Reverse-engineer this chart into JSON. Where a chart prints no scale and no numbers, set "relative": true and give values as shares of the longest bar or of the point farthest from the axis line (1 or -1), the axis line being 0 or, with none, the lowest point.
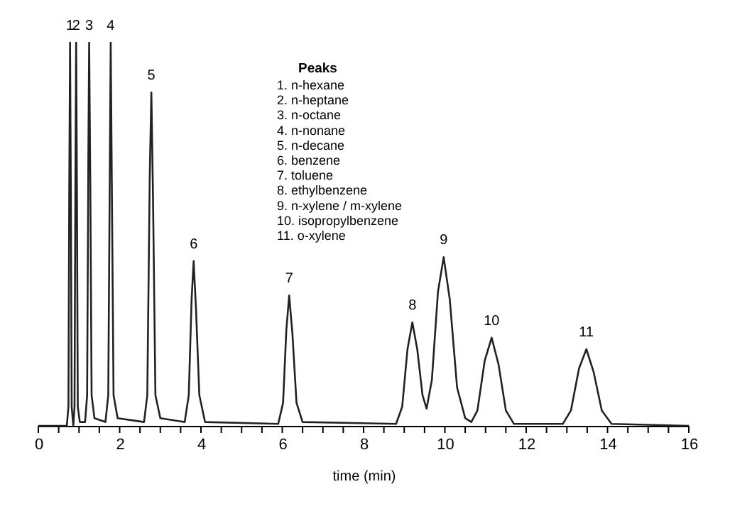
{
  "chart_data": {
    "type": "line",
    "relative": true,
    "xlabel": "time (min)",
    "legend_title": "Peaks",
    "xlim": [
      0,
      16
    ],
    "xticks": [
      0,
      {
        "value": 0.5,
        "label": null
      },
      {
        "value": 1,
        "label": null
      },
      {
        "value": 1.5,
        "label": null
      },
      2,
      {
        "value": 2.5,
        "label": null
      },
      {
        "value": 3,
        "label": null
      },
      {
        "value": 3.5,
        "label": null
      },
      4,
      {
        "value": 4.5,
        "label": null
      },
      {
        "value": 5,
        "label": null
      },
      {
        "value": 5.5,
        "label": null
      },
      6,
      {
        "value": 6.5,
        "label": null
      },
      {
        "value": 7,
        "label": null
      },
      {
        "value": 7.5,
        "label": null
      },
      8,
      {
        "value": 8.5,
        "label": null
      },
      {
        "value": 9,
        "label": null
      },
      {
        "value": 9.5,
        "label": null
      },
      10,
      {
        "value": 10.5,
        "label": null
      },
      {
        "value": 11,
        "label": null
      },
      {
        "value": 11.5,
        "label": null
      },
      12,
      {
        "value": 12.5,
        "label": null
      },
      {
        "value": 13,
        "label": null
      },
      {
        "value": 13.5,
        "label": null
      },
      14,
      {
        "value": 14.5,
        "label": null
      },
      {
        "value": 15,
        "label": null
      },
      {
        "value": 15.5,
        "label": null
      },
      16
    ],
    "marker": "none",
    "line_style": "solid",
    "series": [
      {
        "color": "#222222",
        "x": [
          0,
          0.7,
          0.74,
          0.76,
          0.78,
          0.8,
          0.82,
          0.86,
          0.89,
          0.91,
          0.93,
          0.95,
          0.97,
          1.02,
          1.15,
          1.2,
          1.23,
          1.25,
          1.28,
          1.31,
          1.38,
          1.65,
          1.72,
          1.76,
          1.78,
          1.81,
          1.85,
          1.95,
          2.6,
          2.68,
          2.74,
          2.78,
          2.82,
          2.88,
          3.0,
          3.6,
          3.7,
          3.77,
          3.82,
          3.88,
          3.96,
          4.1,
          5.9,
          6.02,
          6.1,
          6.17,
          6.25,
          6.35,
          6.5,
          8.8,
          8.95,
          9.08,
          9.2,
          9.32,
          9.45,
          9.55,
          9.68,
          9.83,
          9.97,
          10.12,
          10.3,
          10.5,
          10.65,
          10.8,
          10.98,
          11.15,
          11.32,
          11.5,
          11.7,
          12.9,
          13.1,
          13.3,
          13.48,
          13.66,
          13.86,
          14.1,
          16
        ],
        "values": [
          0,
          0,
          0.05,
          0.6,
          1,
          0.6,
          0.05,
          0,
          0.05,
          0.6,
          1,
          0.6,
          0.05,
          0.01,
          0.01,
          0.08,
          0.7,
          1,
          0.6,
          0.08,
          0.02,
          0.01,
          0.08,
          0.7,
          1,
          0.6,
          0.08,
          0.02,
          0.01,
          0.08,
          0.65,
          0.87,
          0.6,
          0.08,
          0.02,
          0.01,
          0.08,
          0.33,
          0.43,
          0.3,
          0.08,
          0.01,
          0.005,
          0.06,
          0.25,
          0.34,
          0.24,
          0.06,
          0.01,
          0.005,
          0.05,
          0.2,
          0.27,
          0.2,
          0.08,
          0.045,
          0.12,
          0.35,
          0.44,
          0.33,
          0.1,
          0.02,
          0.01,
          0.04,
          0.17,
          0.23,
          0.16,
          0.04,
          0.005,
          0.005,
          0.04,
          0.15,
          0.2,
          0.14,
          0.04,
          0.005,
          0
        ]
      }
    ],
    "annotations": [
      "1. n-hexane",
      "2. n-heptane",
      "3. n-octane",
      "4. n-nonane",
      "5. n-decane",
      "6. benzene",
      "7. toluene",
      "8. ethylbenzene",
      "9. n-xylene / m-xylene",
      "10. isopropylbenzene",
      "11. o-xylene",
      {
        "text": "1",
        "x": 0.78,
        "y": 1
      },
      {
        "text": "2",
        "x": 0.93,
        "y": 1
      },
      {
        "text": "3",
        "x": 1.25,
        "y": 1
      },
      {
        "text": "4",
        "x": 1.78,
        "y": 1
      },
      {
        "text": "5",
        "x": 2.78,
        "y": 0.87
      },
      {
        "text": "6",
        "x": 3.82,
        "y": 0.43
      },
      {
        "text": "7",
        "x": 6.17,
        "y": 0.34
      },
      {
        "text": "8",
        "x": 9.2,
        "y": 0.27
      },
      {
        "text": "9",
        "x": 9.97,
        "y": 0.44
      },
      {
        "text": "10",
        "x": 11.15,
        "y": 0.23
      },
      {
        "text": "11",
        "x": 13.48,
        "y": 0.2
      }
    ]
  }
}
